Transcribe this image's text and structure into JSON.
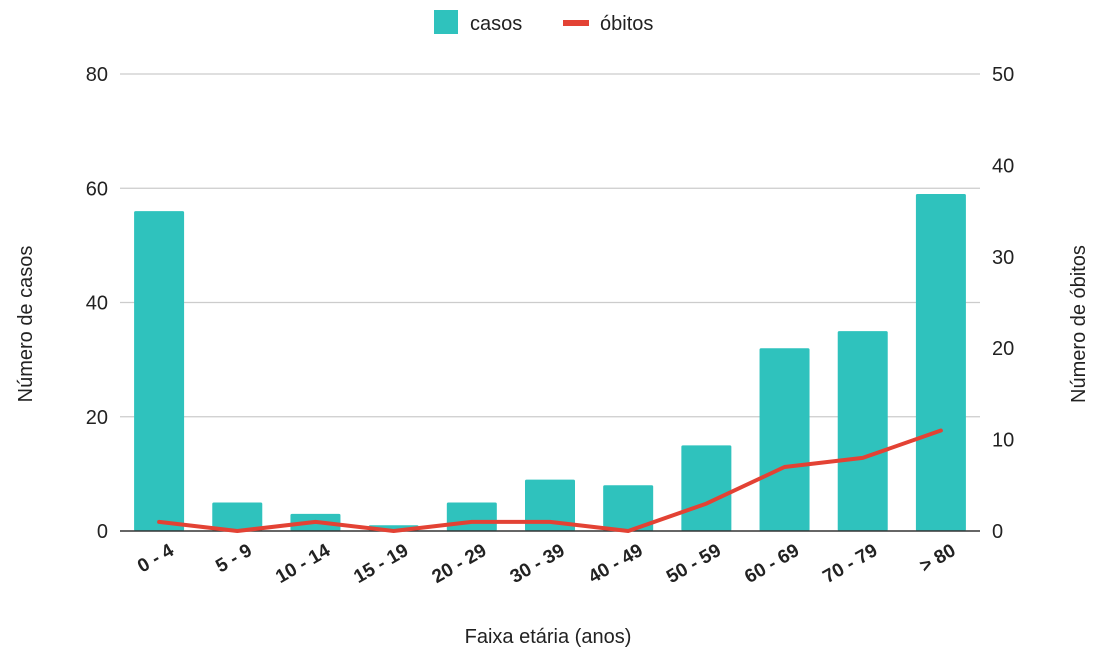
{
  "chart_data": {
    "type": "bar",
    "categories": [
      "0 - 4",
      "5 - 9",
      "10 - 14",
      "15 - 19",
      "20 - 29",
      "30 - 39",
      "40 - 49",
      "50 - 59",
      "60 - 69",
      "70 - 79",
      "> 80"
    ],
    "series": [
      {
        "name": "casos",
        "type": "bar",
        "axis": "left",
        "color": "#2fc2bd",
        "values": [
          56,
          5,
          3,
          1,
          5,
          9,
          8,
          15,
          32,
          35,
          59
        ]
      },
      {
        "name": "óbitos",
        "type": "line",
        "axis": "right",
        "color": "#e34234",
        "values": [
          1,
          0,
          1,
          0,
          1,
          1,
          0,
          3,
          7,
          8,
          11
        ]
      }
    ],
    "title": "",
    "xlabel": "Faixa etária (anos)",
    "ylabel": "Número de casos",
    "y2label": "Número de óbitos",
    "ylim": [
      0,
      80
    ],
    "y2lim": [
      0,
      50
    ],
    "yticks": [
      0,
      20,
      40,
      60,
      80
    ],
    "y2ticks": [
      0,
      10,
      20,
      30,
      40,
      50
    ],
    "grid": true,
    "legend": "top-center"
  }
}
